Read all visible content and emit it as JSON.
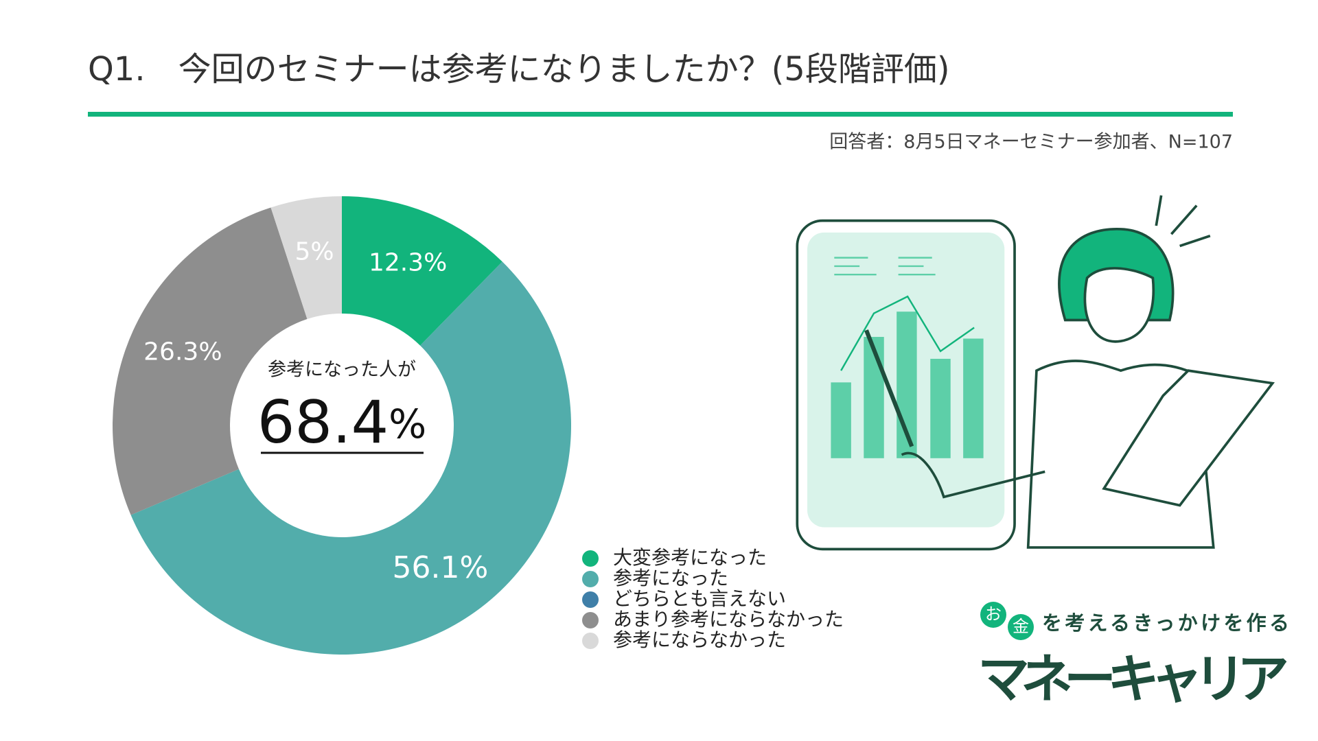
{
  "header": {
    "title": "Q1.　今回のセミナーは参考になりましたか？(5段階評価)",
    "subtitle": "回答者：8月5日マネーセミナー参加者、N=107"
  },
  "chart_data": {
    "type": "donut",
    "categories": [
      "大変参考になった",
      "参考になった",
      "どちらとも言えない",
      "あまり参考にならなかった",
      "参考にならなかった"
    ],
    "values": [
      12.3,
      56.1,
      0,
      26.3,
      5
    ],
    "value_labels": [
      "12.3%",
      "56.1%",
      null,
      "26.3%",
      "5%"
    ],
    "colors": [
      "#12b47c",
      "#52adab",
      "#3f7fa8",
      "#8e8e8e",
      "#d9d9d9"
    ],
    "center_text": "参考になった人が",
    "center_value": "68.4",
    "center_unit": "%"
  },
  "logo": {
    "badge_1": "お",
    "badge_2": "金",
    "tagline": "を考えるきっかけを作る",
    "name": "マネーキャリア"
  }
}
